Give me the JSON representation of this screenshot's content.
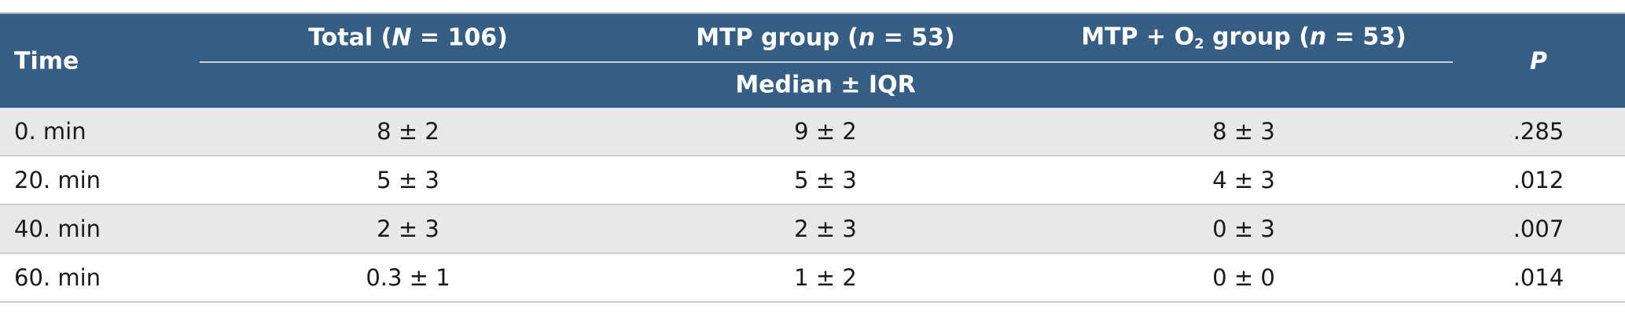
{
  "table": {
    "header": {
      "time": "Time",
      "total": [
        "Total (",
        "N",
        " = 106)"
      ],
      "mtp": [
        "MTP group (",
        "n",
        " = 53)"
      ],
      "mtp_o2": [
        "MTP + O",
        "2",
        " group (",
        "n",
        " = 53)"
      ],
      "subheader": "Median ± IQR",
      "p": "P"
    },
    "rows": [
      [
        "0. min",
        "8 ± 2",
        "9 ± 2",
        "8 ± 3",
        ".285"
      ],
      [
        "20. min",
        "5 ± 3",
        "5 ± 3",
        "4 ± 3",
        ".012"
      ],
      [
        "40. min",
        "2 ± 3",
        "2 ± 3",
        "0 ± 3",
        ".007"
      ],
      [
        "60. min",
        "0.3 ± 1",
        "1 ± 2",
        "0 ± 0",
        ".014"
      ]
    ]
  }
}
